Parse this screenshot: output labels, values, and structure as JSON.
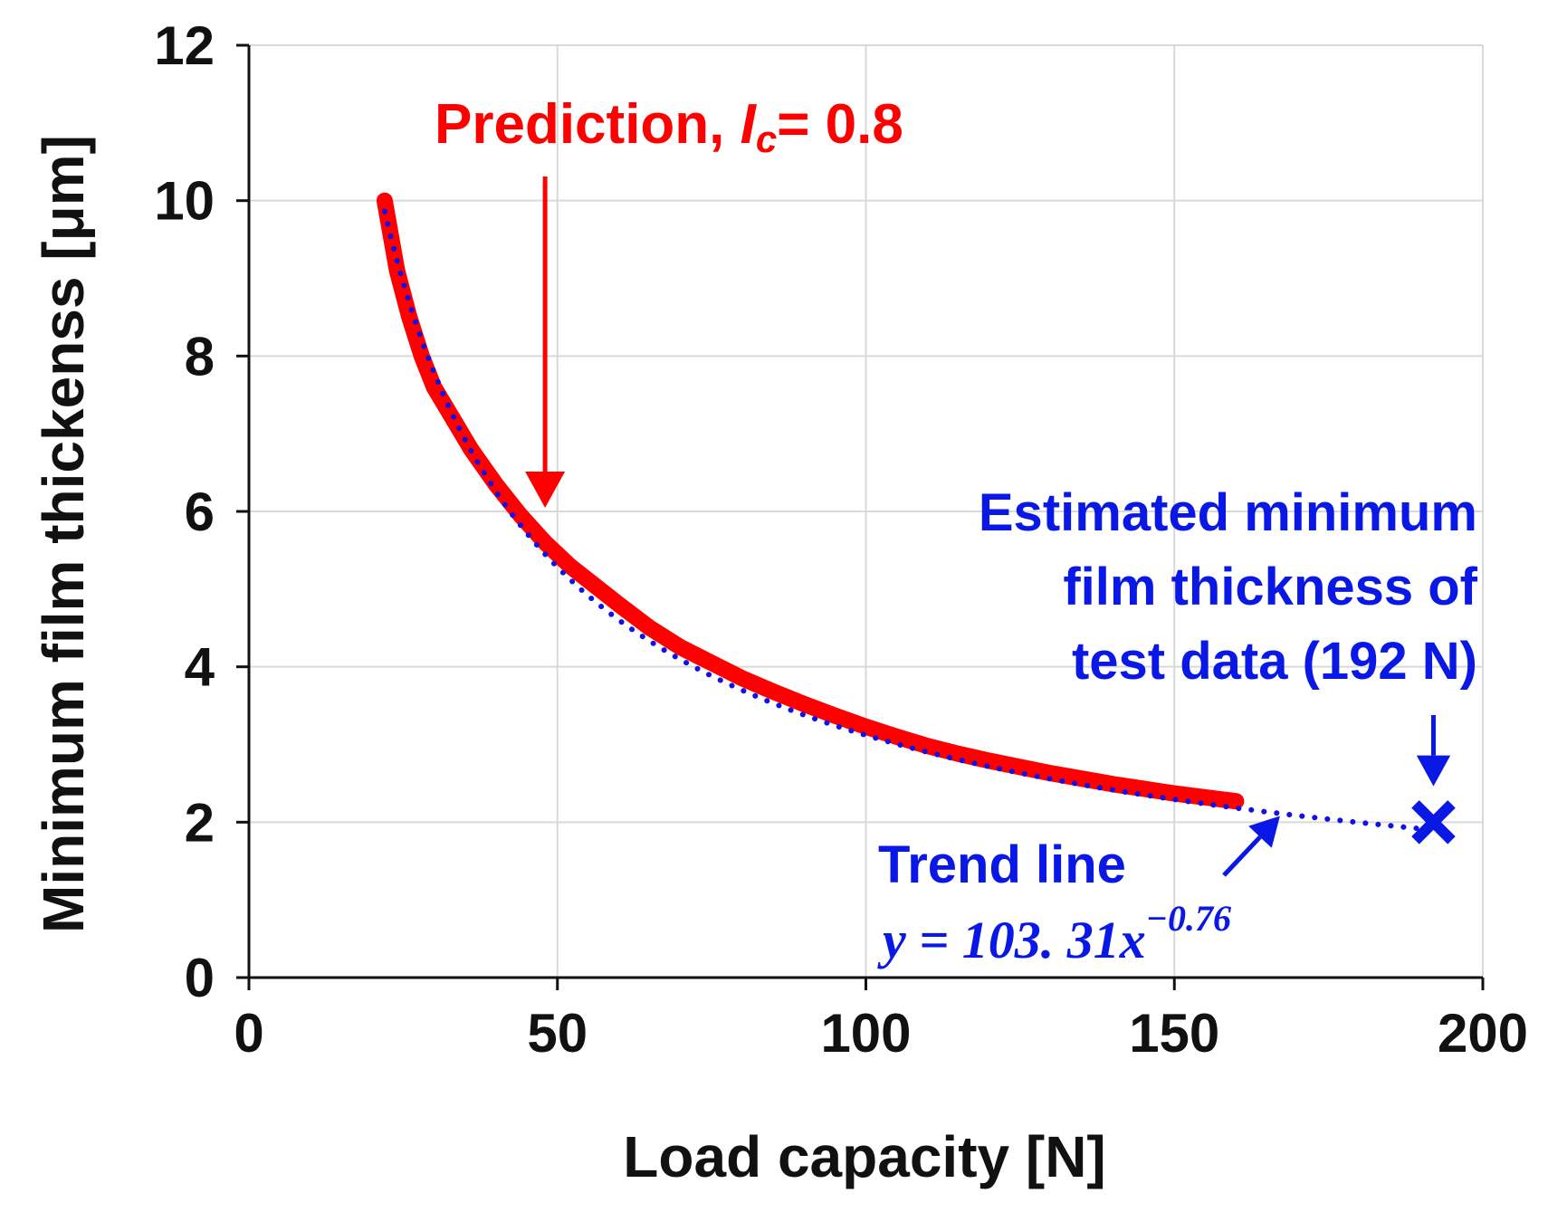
{
  "chart_data": {
    "type": "line",
    "xlabel": "Load capacity [N]",
    "ylabel": "Minimum film thickenss [μm]",
    "xlim": [
      0,
      200
    ],
    "ylim": [
      0,
      12
    ],
    "x_ticks": [
      0,
      50,
      100,
      150,
      200
    ],
    "y_ticks": [
      0,
      2,
      4,
      6,
      8,
      10,
      12
    ],
    "grid": true,
    "colors": {
      "prediction": "#ff0000",
      "trend": "#1010e8",
      "estimate": "#0a18e6",
      "axis": "#111111",
      "grid": "#d9d9d9"
    },
    "series": [
      {
        "name": "Prediction, Ic= 0.8",
        "style": "thick-solid",
        "x": [
          22,
          24,
          26,
          28,
          30,
          33,
          36,
          40,
          44,
          48,
          52,
          56,
          60,
          65,
          70,
          75,
          80,
          85,
          90,
          95,
          100,
          105,
          110,
          115,
          120,
          125,
          130,
          135,
          140,
          145,
          150,
          155,
          160
        ],
        "y": [
          10.0,
          9.1,
          8.5,
          8.0,
          7.6,
          7.2,
          6.8,
          6.35,
          5.95,
          5.6,
          5.3,
          5.05,
          4.8,
          4.5,
          4.25,
          4.05,
          3.85,
          3.68,
          3.52,
          3.37,
          3.23,
          3.1,
          2.98,
          2.88,
          2.79,
          2.71,
          2.63,
          2.56,
          2.49,
          2.43,
          2.37,
          2.32,
          2.27
        ]
      },
      {
        "name": "Trend line",
        "style": "dotted",
        "equation": {
          "a": 103.31,
          "b": -0.76
        },
        "x_range": [
          22,
          190
        ]
      },
      {
        "name": "Estimated minimum film thickness of test data (192 N)",
        "style": "x-marker",
        "x": [
          192
        ],
        "y": [
          2.0
        ]
      }
    ],
    "annotations": {
      "prediction": {
        "prefix": "Prediction, ",
        "var": "I",
        "sub": "c",
        "suffix": "= 0.8",
        "arrow_to": [
          48,
          6.0
        ]
      },
      "estimate": {
        "lines": [
          "Estimated minimum",
          "film thickness of",
          "test data (192 N)"
        ],
        "arrow_to": [
          192,
          2.3
        ]
      },
      "trend": {
        "label": "Trend line",
        "eq_main": "y = 103. 31x",
        "eq_exp": "−0.76",
        "arrow_to": [
          168,
          2.15
        ]
      }
    }
  }
}
